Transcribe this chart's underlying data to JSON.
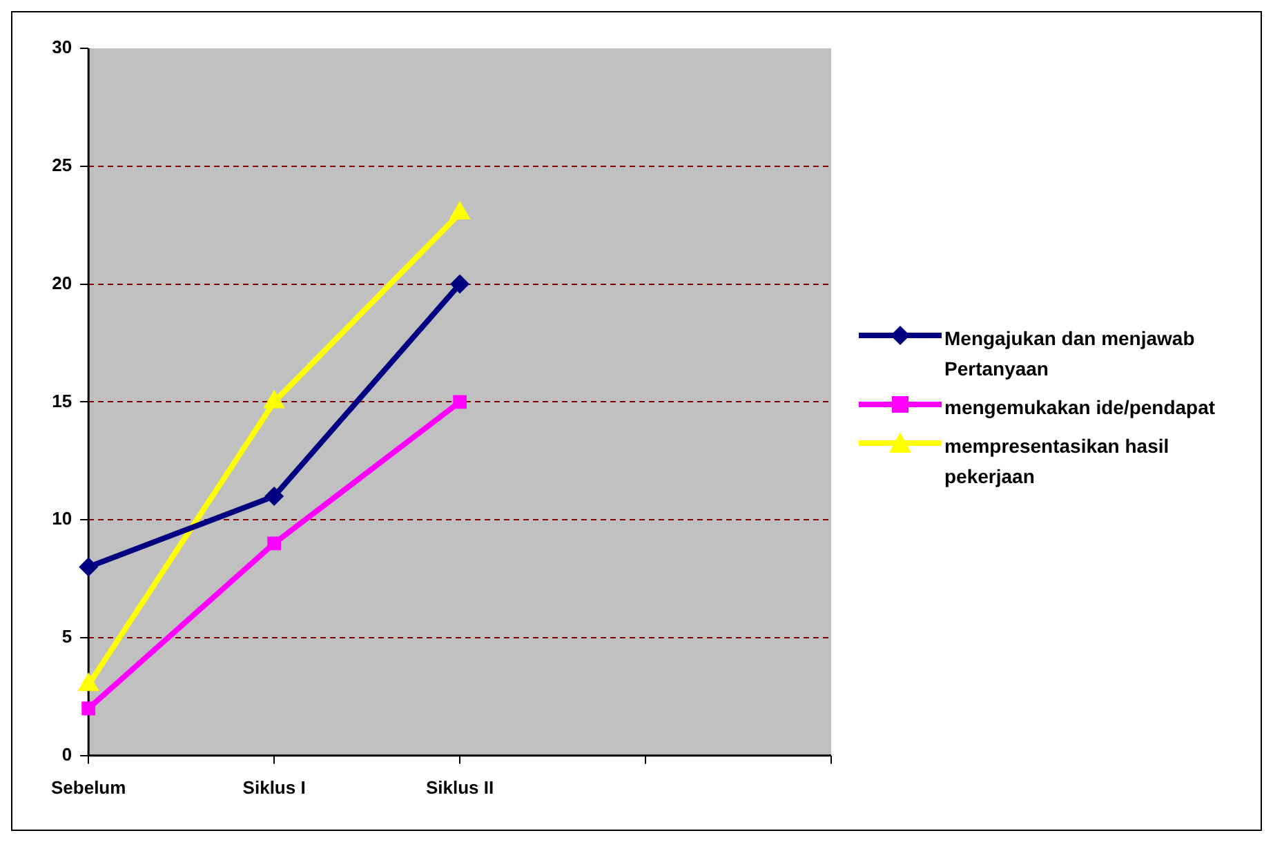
{
  "chart_data": {
    "type": "line",
    "categories": [
      "Sebelum",
      "Siklus I",
      "Siklus II",
      null,
      null
    ],
    "series": [
      {
        "name": "Mengajukan dan menjawab Pertanyaan",
        "color": "#000080",
        "values": [
          8,
          11,
          20,
          null,
          null
        ],
        "marker": "diamond"
      },
      {
        "name": "mengemukakan ide/pendapat",
        "color": "#ff00ff",
        "values": [
          2,
          9,
          15,
          null,
          null
        ],
        "marker": "square"
      },
      {
        "name": "mempresentasikan hasil pekerjaan",
        "color": "#ffff00",
        "values": [
          3,
          15,
          23,
          null,
          null
        ],
        "marker": "triangle"
      }
    ],
    "ylim": [
      0,
      30
    ],
    "yticks": [
      0,
      5,
      10,
      15,
      20,
      25,
      30
    ],
    "grid": "y",
    "legend": "right",
    "line_style": "solid"
  }
}
